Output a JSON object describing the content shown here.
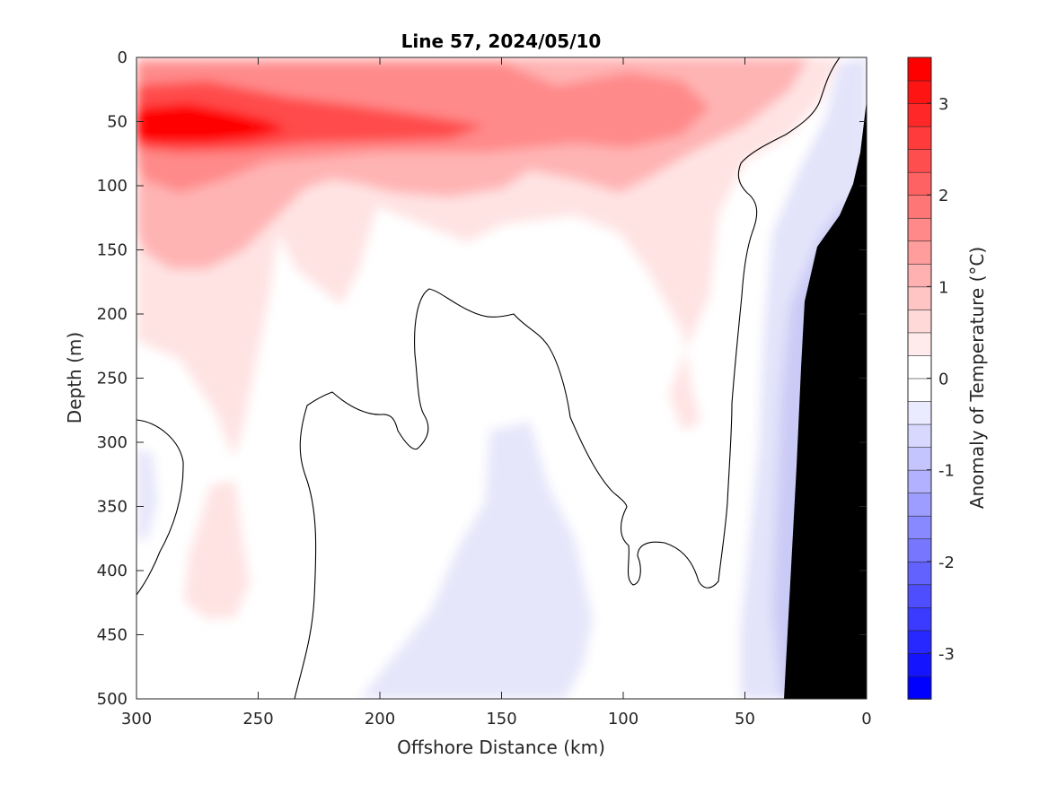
{
  "chart_data": {
    "type": "heatmap",
    "title": "Line 57, 2024/05/10",
    "xlabel": "Offshore Distance (km)",
    "ylabel": "Depth (m)",
    "colorbar_label": "Anomaly of Temperature (°C)",
    "xlim": [
      300,
      0
    ],
    "ylim": [
      500,
      0
    ],
    "x_reversed": true,
    "y_reversed": true,
    "x_ticks": [
      "300",
      "250",
      "200",
      "150",
      "100",
      "50",
      "0"
    ],
    "y_ticks": [
      "0",
      "50",
      "100",
      "150",
      "200",
      "250",
      "300",
      "350",
      "400",
      "450",
      "500"
    ],
    "colorbar": {
      "min": -3.5,
      "max": 3.5,
      "step": 0.25,
      "ticks": [
        "3",
        "2",
        "1",
        "0",
        "-1",
        "-2",
        "-3"
      ],
      "cold_color": "#0000ff",
      "neutral_color": "#ffffff",
      "warm_color": "#ff0000"
    },
    "bathymetry_color": "#000000",
    "zero_contour_color": "#000000",
    "features": [
      {
        "name": "warm core",
        "distance_km": [
          300,
          230
        ],
        "depth_m": [
          40,
          75
        ],
        "anomaly_c": 3.4
      },
      {
        "name": "surface warm layer",
        "distance_km": [
          300,
          15
        ],
        "depth_m": [
          0,
          100
        ],
        "anomaly_c": 1.2
      },
      {
        "name": "deep cool patch",
        "distance_km": [
          200,
          115
        ],
        "depth_m": [
          290,
          500
        ],
        "anomaly_c": -0.3
      },
      {
        "name": "nearshore cool band",
        "distance_km": [
          55,
          25
        ],
        "depth_m": [
          20,
          500
        ],
        "anomaly_c": -0.6
      }
    ]
  }
}
